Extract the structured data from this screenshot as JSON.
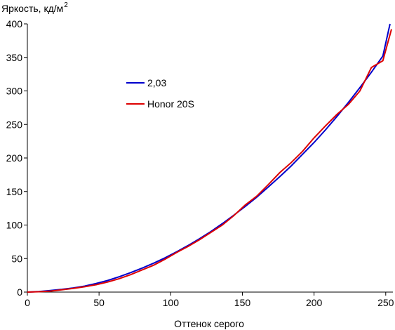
{
  "chart_data": {
    "type": "line",
    "title": "",
    "xlabel": "Оттенок серого",
    "ylabel_main": "Яркость, кд/м",
    "ylabel_sup": "2",
    "xlim": [
      0,
      255
    ],
    "ylim": [
      0,
      400
    ],
    "x_ticks": [
      0,
      50,
      100,
      150,
      200,
      250
    ],
    "y_ticks": [
      0,
      50,
      100,
      150,
      200,
      250,
      300,
      350,
      400
    ],
    "grid": false,
    "legend_position": "upper-left",
    "series": [
      {
        "name": "2,03",
        "color": "#0000cc",
        "x": [
          0,
          8,
          16,
          24,
          32,
          40,
          48,
          56,
          64,
          72,
          80,
          88,
          96,
          104,
          112,
          120,
          128,
          136,
          144,
          152,
          160,
          168,
          176,
          184,
          192,
          200,
          208,
          216,
          224,
          232,
          240,
          248,
          253
        ],
        "y": [
          0,
          0.8,
          2.4,
          4.1,
          6.2,
          8.9,
          12.9,
          17.3,
          22.8,
          29.0,
          35.7,
          43.0,
          51.0,
          59.9,
          69.3,
          79.5,
          90.3,
          102.1,
          114.7,
          127.9,
          141.6,
          156.5,
          172.0,
          188.0,
          205.5,
          223.0,
          242.0,
          262.0,
          283.0,
          305.0,
          328.0,
          352.0,
          400
        ]
      },
      {
        "name": "Honor 20S",
        "color": "#dd0000",
        "x": [
          0,
          8,
          16,
          24,
          32,
          40,
          48,
          56,
          64,
          72,
          80,
          88,
          96,
          104,
          112,
          120,
          128,
          136,
          144,
          152,
          160,
          168,
          176,
          184,
          192,
          200,
          208,
          216,
          224,
          232,
          240,
          248,
          254
        ],
        "y": [
          0,
          0.5,
          1.5,
          3.5,
          5.5,
          8.0,
          11.0,
          15.0,
          20.0,
          26.0,
          33.0,
          40.0,
          49.0,
          59.0,
          68.0,
          78.0,
          89.0,
          100.0,
          114.0,
          130.0,
          143.0,
          160.0,
          178.0,
          193.0,
          210.0,
          230.0,
          248.0,
          265.0,
          280.0,
          300.0,
          335.0,
          345.0,
          392.0
        ]
      }
    ]
  }
}
